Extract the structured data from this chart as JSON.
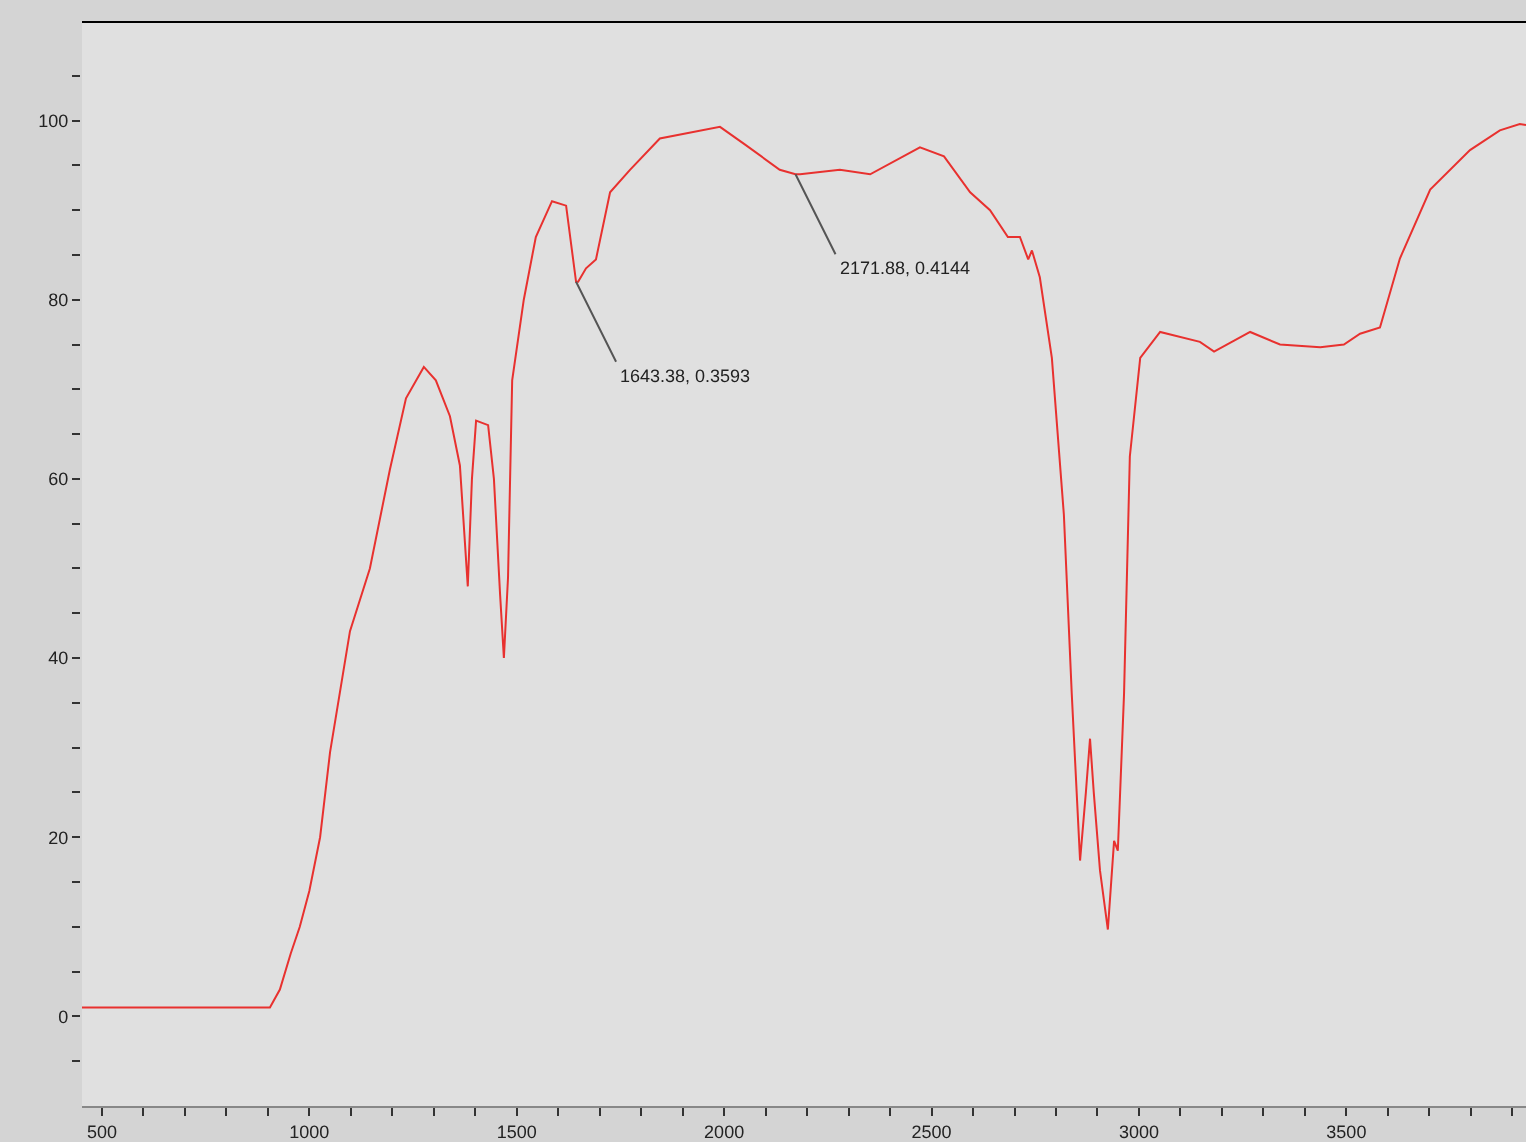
{
  "chart_data": {
    "type": "line",
    "x": [
      452,
      600,
      750,
      905,
      929,
      955,
      977,
      1000,
      1026,
      1050,
      1098,
      1146,
      1194,
      1233,
      1276,
      1305,
      1339,
      1363,
      1382,
      1392,
      1402,
      1431,
      1445,
      1460,
      1469,
      1479,
      1489,
      1517,
      1546,
      1585,
      1619,
      1643,
      1648,
      1667,
      1691,
      1725,
      1773,
      1845,
      1990,
      2048,
      2134,
      2172,
      2183,
      2279,
      2352,
      2472,
      2530,
      2593,
      2641,
      2684,
      2713,
      2733,
      2742,
      2761,
      2790,
      2819,
      2838,
      2858,
      2872,
      2882,
      2891,
      2906,
      2925,
      2940,
      2949,
      2964,
      2978,
      3003,
      3051,
      3147,
      3181,
      3268,
      3340,
      3437,
      3494,
      3533,
      3581,
      3629,
      3702,
      3798,
      3870,
      3918,
      3933
    ],
    "series": [
      {
        "color": "#e8312f",
        "values": [
          1,
          1,
          1,
          1,
          3,
          7,
          10,
          14,
          20,
          29.5,
          43,
          50,
          61,
          69,
          72.5,
          71,
          67,
          61.5,
          48,
          60,
          66.5,
          66,
          60,
          47,
          40,
          49,
          71,
          80,
          87,
          91,
          90.5,
          82,
          82,
          83.5,
          84.5,
          92,
          94.5,
          98,
          99.3,
          97.4,
          94.5,
          94,
          94,
          94.5,
          94,
          97,
          96,
          92,
          90,
          87,
          87,
          84.5,
          85.5,
          82.5,
          73.5,
          56,
          36,
          17.4,
          25,
          31,
          25,
          16.3,
          9.7,
          19.6,
          18.5,
          36,
          62.5,
          73.5,
          76.4,
          75.3,
          74.2,
          76.4,
          75,
          74.7,
          75,
          76.2,
          76.9,
          84.6,
          92.3,
          96.7,
          98.9,
          99.6,
          99.5
        ]
      }
    ],
    "xlim": [
      452,
      3933
    ],
    "ylim": [
      -10,
      111
    ],
    "xticks": [
      500,
      {
        "value": 600,
        "label": null
      },
      {
        "value": 700,
        "label": null
      },
      {
        "value": 800,
        "label": null
      },
      {
        "value": 900,
        "label": null
      },
      1000,
      {
        "value": 1100,
        "label": null
      },
      {
        "value": 1200,
        "label": null
      },
      {
        "value": 1300,
        "label": null
      },
      {
        "value": 1400,
        "label": null
      },
      1500,
      {
        "value": 1600,
        "label": null
      },
      {
        "value": 1700,
        "label": null
      },
      {
        "value": 1800,
        "label": null
      },
      {
        "value": 1900,
        "label": null
      },
      2000,
      {
        "value": 2100,
        "label": null
      },
      {
        "value": 2200,
        "label": null
      },
      {
        "value": 2300,
        "label": null
      },
      {
        "value": 2400,
        "label": null
      },
      2500,
      {
        "value": 2600,
        "label": null
      },
      {
        "value": 2700,
        "label": null
      },
      {
        "value": 2800,
        "label": null
      },
      {
        "value": 2900,
        "label": null
      },
      3000,
      {
        "value": 3100,
        "label": null
      },
      {
        "value": 3200,
        "label": null
      },
      {
        "value": 3300,
        "label": null
      },
      {
        "value": 3400,
        "label": null
      },
      3500,
      {
        "value": 3600,
        "label": null
      },
      {
        "value": 3700,
        "label": null
      },
      {
        "value": 3800,
        "label": null
      },
      {
        "value": 3900,
        "label": null
      }
    ],
    "yticks": [
      {
        "value": -5,
        "label": null
      },
      0,
      {
        "value": 5,
        "label": null
      },
      {
        "value": 10,
        "label": null
      },
      {
        "value": 15,
        "label": null
      },
      20,
      {
        "value": 25,
        "label": null
      },
      {
        "value": 30,
        "label": null
      },
      {
        "value": 35,
        "label": null
      },
      40,
      {
        "value": 45,
        "label": null
      },
      {
        "value": 50,
        "label": null
      },
      {
        "value": 55,
        "label": null
      },
      60,
      {
        "value": 65,
        "label": null
      },
      {
        "value": 70,
        "label": null
      },
      {
        "value": 75,
        "label": null
      },
      80,
      {
        "value": 85,
        "label": null
      },
      {
        "value": 90,
        "label": null
      },
      {
        "value": 95,
        "label": null
      },
      100,
      {
        "value": 105,
        "label": null
      }
    ],
    "annotations": [
      {
        "text": "1643.38, 0.3593",
        "x": 1643,
        "y": 82
      },
      {
        "text": "2171.88, 0.4144",
        "x": 2172,
        "y": 94
      }
    ],
    "grid": false,
    "legend": false,
    "marker": "none",
    "line_style": "solid"
  }
}
